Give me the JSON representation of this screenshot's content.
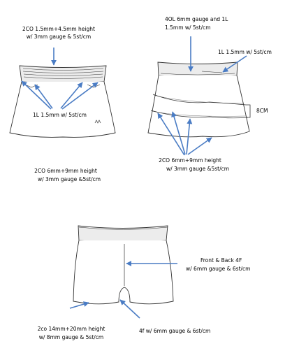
{
  "labels": {
    "skirt1_top_l1": "2CO 1.5mm+4.5mm height",
    "skirt1_top_l2": "w/ 3mm gauge & 5st/cm",
    "skirt1_mid": "1L 1.5mm w/ 5st/cm",
    "skirt1_bot_l1": "2CO 6mm+9mm height",
    "skirt1_bot_l2": "w/ 3mm gauge &5st/cm",
    "skirt2_top_l1": "4OL 6mm gauge and 1L",
    "skirt2_top_l2": "1.5mm w/ 5st/cm",
    "skirt2_right": "1L 1.5mm w/ 5st/cm",
    "skirt2_measure": "8CM",
    "skirt2_bot_l1": "2CO 6mm+9mm height",
    "skirt2_bot_l2": "w/ 3mm gauge &5st/cm",
    "shorts_right_l1": "Front & Back 4F",
    "shorts_right_l2": "w/ 6mm gauge & 6st/cm",
    "shorts_left_l1": "2co 14mm+20mm height",
    "shorts_left_l2": "w/ 8mm gauge & 5st/cm",
    "shorts_crotch": "4f w/ 6mm gauge & 6st/cm"
  },
  "colors": {
    "arrow": "#4a7cc4",
    "outline": "#333333",
    "waistband_fill": "#ececec"
  }
}
